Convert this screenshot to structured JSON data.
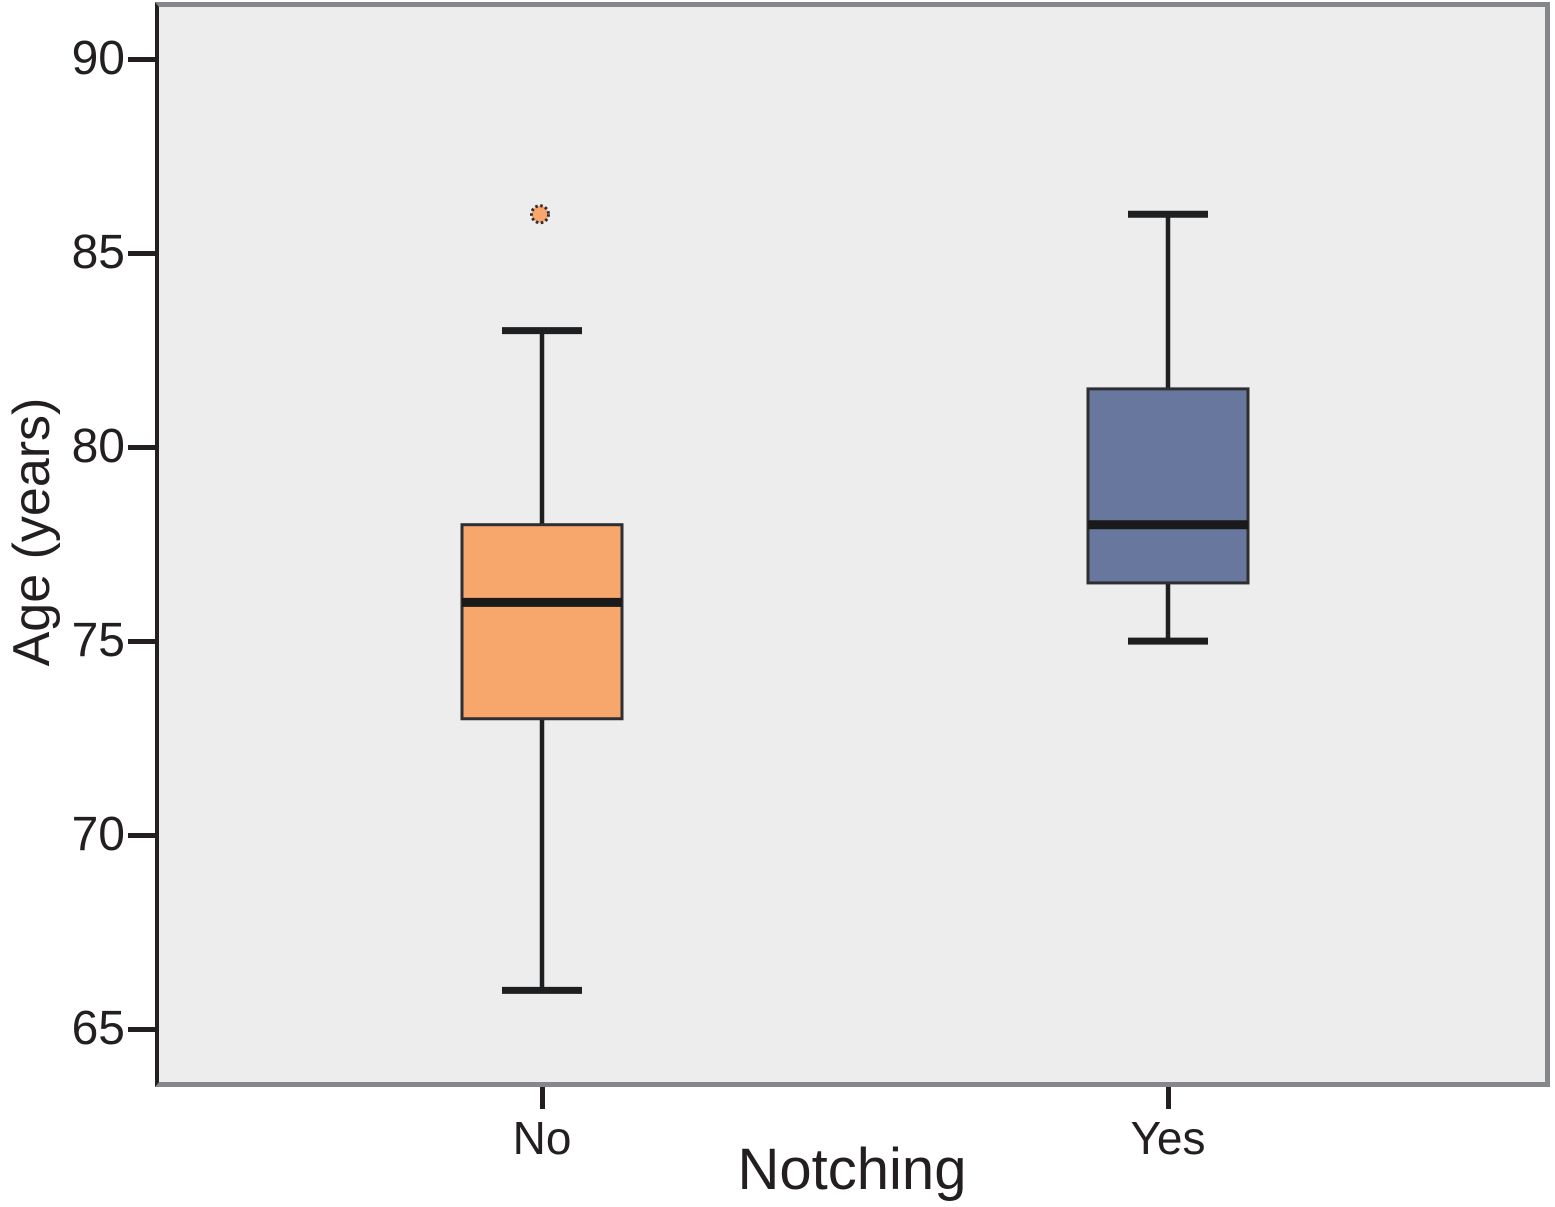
{
  "chart_data": {
    "type": "boxplot",
    "title": "",
    "xlabel": "Notching",
    "ylabel": "Age (years)",
    "categories": [
      "No",
      "Yes"
    ],
    "yticks": [
      90,
      85,
      80,
      75,
      70,
      65
    ],
    "ylim": [
      63.6,
      91.3
    ],
    "grid": false,
    "legend": "none",
    "series": [
      {
        "category": "No",
        "whisker_low": 66,
        "q1": 73,
        "median": 76,
        "q3": 78,
        "whisker_high": 83,
        "outliers": [
          86
        ],
        "fill_color": "#F7A76C"
      },
      {
        "category": "Yes",
        "whisker_low": 75,
        "q1": 76.5,
        "median": 78,
        "q3": 81.5,
        "whisker_high": 86,
        "outliers": [],
        "fill_color": "#68779E"
      }
    ],
    "colors": {
      "plot_background": "#ECEDEC",
      "frame": "#85878A",
      "axis_line": "#231F20",
      "box_border": "#2E2E33",
      "median_line": "#1A1A1A",
      "whisker_line": "#1E1F21",
      "text": "#231F20"
    }
  }
}
